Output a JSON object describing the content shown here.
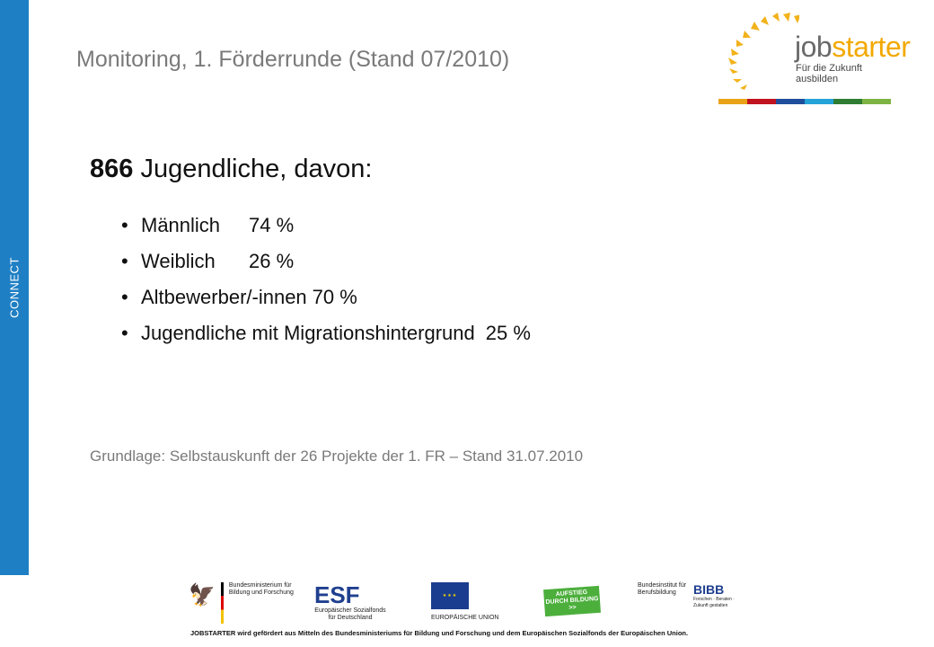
{
  "sidebar": {
    "label": "CONNECT"
  },
  "header": {
    "title": "Monitoring, 1. Förderrunde (Stand 07/2010)"
  },
  "logo": {
    "word_part1": "job",
    "word_part2": "starter",
    "tagline": "Für die Zukunft ausbilden",
    "bar_colors": [
      "#e8a317",
      "#c1121f",
      "#1f4e9c",
      "#24a3d8",
      "#2e7d32",
      "#7cb342"
    ]
  },
  "content": {
    "heading_number": "866",
    "heading_text": "Jugendliche, davon:",
    "items": [
      {
        "label": "Männlich",
        "value": "74 %"
      },
      {
        "label": "Weiblich",
        "value": "26 %"
      },
      {
        "label": "Altbewerber/-innen",
        "value": "70 %"
      },
      {
        "label": "Jugendliche mit Migrationshintergrund",
        "value": "25 %"
      }
    ],
    "bullet": "•"
  },
  "source_note": "Grundlage: Selbstauskunft der 26 Projekte der 1. FR – Stand 31.07.2010",
  "footer": {
    "bmbf": "Bundesministerium für Bildung und Forschung",
    "esf_title": "ESF",
    "esf_sub": "Europäischer Sozialfonds für Deutschland",
    "eu": "EUROPÄISCHE UNION",
    "aufstieg": "AUFSTIEG DURCH BILDUNG >>",
    "bibb_inst": "Bundesinstitut für Berufsbildung",
    "bibb": "BIBB",
    "bibb_tags": "Forschen · Beraten · Zukunft gestalten",
    "text": "JOBSTARTER wird gefördert aus Mitteln des Bundesministeriums für Bildung und Forschung und dem Europäischen Sozialfonds der Europäischen Union."
  }
}
